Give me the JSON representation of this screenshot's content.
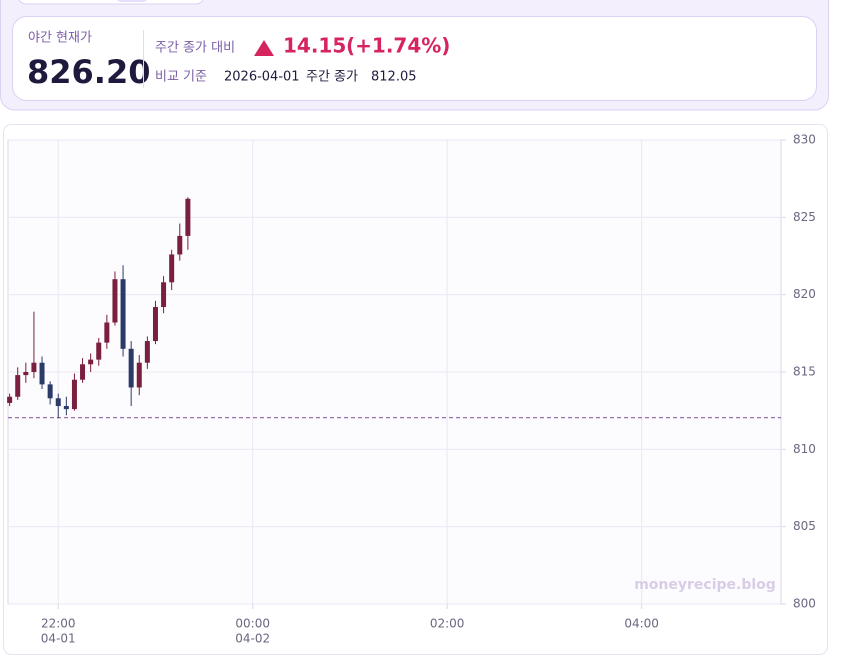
{
  "quote": {
    "label": "야간 현재가",
    "price": 826.2,
    "price_label": "826.20",
    "change_label": "주간 종가 대비",
    "change": 14.15,
    "change_pct": {
      "value": 1.74,
      "label": "(+1.74%)"
    },
    "base_label": "비교 기준",
    "base_date": "2026-04-01",
    "base_kind": "주간 종가",
    "base_close": 812.05
  },
  "chart_data": {
    "type": "candlestick",
    "watermark": "moneyrecipe.blog",
    "x": [
      "04-01 21:30",
      "04-01 21:35",
      "04-01 21:40",
      "04-01 21:45",
      "04-01 21:50",
      "04-01 21:55",
      "04-01 22:00",
      "04-01 22:05",
      "04-01 22:10",
      "04-01 22:15",
      "04-01 22:20",
      "04-01 22:25",
      "04-01 22:30",
      "04-01 22:35",
      "04-01 22:40",
      "04-01 22:45",
      "04-01 22:50",
      "04-01 22:55",
      "04-01 23:00",
      "04-01 23:05",
      "04-01 23:10",
      "04-01 23:15",
      "04-01 23:20"
    ],
    "open": [
      813.0,
      813.4,
      814.8,
      815.0,
      815.6,
      814.2,
      813.3,
      812.8,
      812.6,
      814.5,
      815.5,
      815.8,
      816.9,
      818.2,
      821.0,
      816.5,
      814.0,
      815.6,
      817.0,
      819.2,
      820.8,
      822.6,
      823.8
    ],
    "high": [
      813.6,
      815.3,
      815.6,
      818.9,
      816.0,
      814.4,
      813.6,
      813.4,
      814.9,
      815.9,
      816.2,
      817.2,
      818.7,
      821.5,
      821.9,
      817.0,
      816.1,
      817.3,
      819.6,
      821.2,
      822.9,
      824.6,
      826.3
    ],
    "low": [
      812.8,
      813.2,
      814.3,
      814.6,
      813.9,
      812.9,
      812.0,
      812.2,
      812.5,
      814.3,
      815.0,
      815.4,
      816.5,
      818.0,
      816.0,
      812.8,
      813.5,
      815.2,
      816.8,
      818.8,
      820.3,
      822.2,
      822.9
    ],
    "close": [
      813.4,
      814.8,
      815.0,
      815.6,
      814.2,
      813.3,
      812.8,
      812.6,
      814.5,
      815.5,
      815.8,
      816.9,
      818.2,
      821.0,
      816.5,
      814.0,
      815.6,
      817.0,
      819.2,
      820.8,
      822.6,
      823.8,
      826.2
    ],
    "up_color": "#7a1f3d",
    "down_color": "#2b3a67",
    "reference_color": "#9a6fb0",
    "xlim": [
      "04-01 21:29",
      "04-02 05:26"
    ],
    "xticks": [
      {
        "value": "04-01 22:00",
        "label": "22:00",
        "date": "04-01"
      },
      {
        "value": "04-02 00:00",
        "label": "00:00",
        "date": "04-02"
      },
      {
        "value": "04-02 02:00",
        "label": "02:00"
      },
      {
        "value": "04-02 04:00",
        "label": "04:00"
      }
    ],
    "ylim": [
      800,
      830
    ],
    "yticks": [
      800,
      805,
      810,
      815,
      820,
      825,
      830
    ],
    "grid": true
  }
}
